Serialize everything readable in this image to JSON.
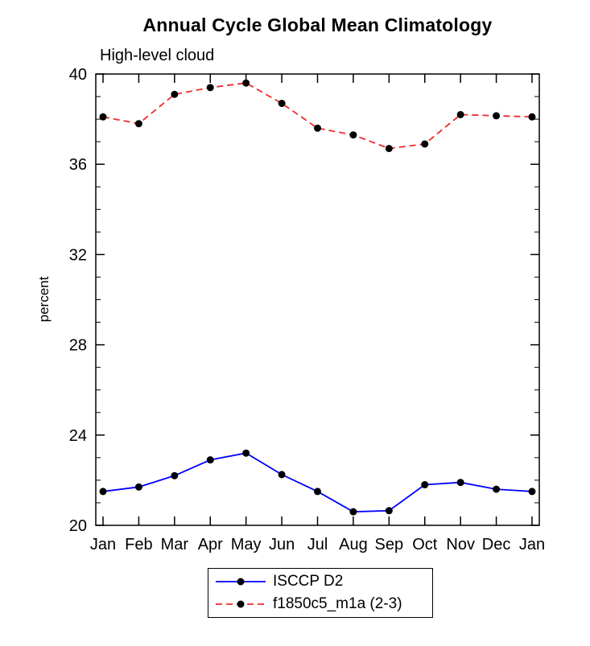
{
  "chart_data": {
    "type": "line",
    "title": "Annual Cycle Global Mean Climatology",
    "subtitle": "High-level cloud",
    "xlabel": "",
    "ylabel": "percent",
    "x_categories": [
      "Jan",
      "Feb",
      "Mar",
      "Apr",
      "May",
      "Jun",
      "Jul",
      "Aug",
      "Sep",
      "Oct",
      "Nov",
      "Dec",
      "Jan"
    ],
    "ylim": [
      20,
      40
    ],
    "yticks_major": [
      20,
      24,
      28,
      32,
      36,
      40
    ],
    "ytick_minor_step": 1,
    "grid": false,
    "legend_position": "bottom-center",
    "frame_color": "#000000",
    "marker_color": "#000000",
    "series": [
      {
        "name": "ISCCP D2",
        "color": "#0000ff",
        "style": "solid",
        "marker": "circle",
        "values": [
          21.5,
          21.7,
          22.2,
          22.9,
          23.2,
          22.25,
          21.5,
          20.6,
          20.65,
          21.8,
          21.9,
          21.6,
          21.5
        ]
      },
      {
        "name": "f1850c5_m1a (2-3)",
        "color": "#ee2c2c",
        "style": "dashed",
        "marker": "circle",
        "values": [
          38.1,
          37.8,
          39.1,
          39.4,
          39.6,
          38.7,
          37.6,
          37.3,
          36.7,
          36.9,
          38.2,
          38.15,
          38.1
        ]
      }
    ]
  }
}
